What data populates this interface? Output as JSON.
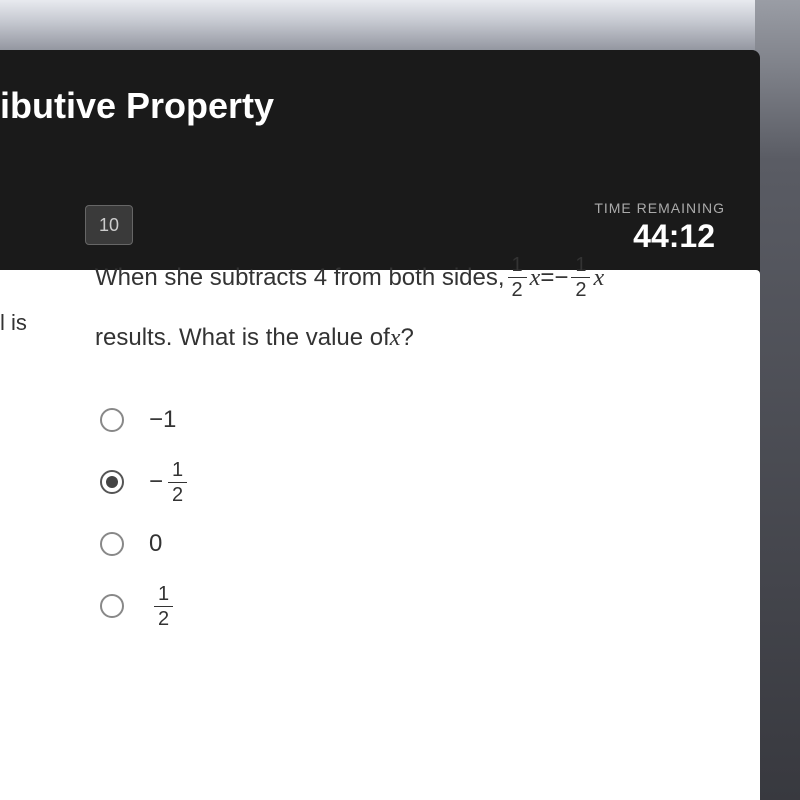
{
  "page": {
    "title": "ibutive Property",
    "question_number": "10",
    "time_remaining_label": "TIME REMAINING",
    "time_remaining_value": "44:12",
    "context_fragment": "l is"
  },
  "question": {
    "text_part1": "When she subtracts 4 from both sides, ",
    "equation": {
      "left_num": "1",
      "left_den": "2",
      "left_var": "x",
      "equals": " = ",
      "right_neg": "−",
      "right_num": "1",
      "right_den": "2",
      "right_var": "x"
    },
    "text_part2": " results. What is the value of ",
    "variable": "x",
    "text_part3": "?"
  },
  "options": [
    {
      "type": "text",
      "value": "−1",
      "selected": false
    },
    {
      "type": "fraction",
      "neg": "−",
      "num": "1",
      "den": "2",
      "selected": true
    },
    {
      "type": "text",
      "value": "0",
      "selected": false
    },
    {
      "type": "fraction",
      "neg": "",
      "num": "1",
      "den": "2",
      "selected": false
    }
  ],
  "colors": {
    "dark_bg": "#1a1a1a",
    "content_bg": "#ffffff",
    "text_primary": "#333333",
    "text_light": "#ffffff",
    "radio_border": "#888888",
    "radio_fill": "#444444"
  }
}
